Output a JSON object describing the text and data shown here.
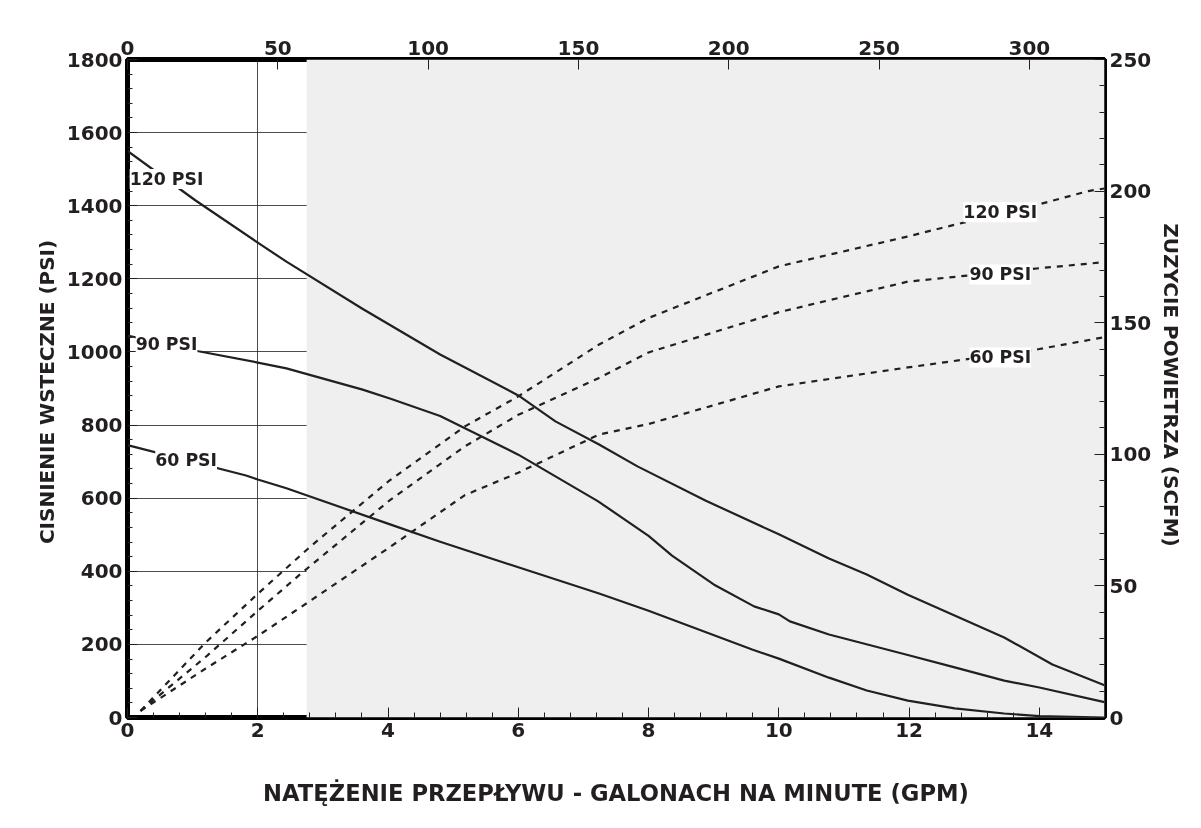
{
  "chart_data": {
    "type": "line",
    "xlabel": "NATĘŻENIE PRZEPŁYWU - GALONACH NA MINUTE (GPM)",
    "ylabel": "CISNIENIE WSTECZNE  (PSI)",
    "y2label": "ZUZYCIE POWIETRZA  (SCFM)",
    "xlim": [
      0,
      15
    ],
    "xticks": [
      0,
      2,
      4,
      6,
      8,
      10,
      12,
      14
    ],
    "ylim": [
      0,
      1800
    ],
    "yticks": [
      0,
      200,
      400,
      600,
      800,
      1000,
      1200,
      1400,
      1600,
      1800
    ],
    "y2lim": [
      0,
      250
    ],
    "y2ticks": [
      0,
      50,
      100,
      150,
      200,
      250
    ],
    "x2lim": [
      0,
      325
    ],
    "x2ticks": [
      0,
      50,
      100,
      150,
      200,
      250,
      300
    ],
    "grid": true,
    "bands": [
      {
        "axis": "x",
        "from": 2.75,
        "to": 15,
        "color": "#efefef"
      }
    ],
    "series": [
      {
        "color": "#231f20",
        "line_style": "solid",
        "axis": "y",
        "x": [
          0,
          1.04,
          2.0,
          2.44,
          3.6,
          4.8,
          6.0,
          6.57,
          7.24,
          7.83,
          8.88,
          10.0,
          10.77,
          11.35,
          11.98,
          13.46,
          14.2,
          15
        ],
        "values": [
          1550,
          1415,
          1299,
          1247,
          1119,
          993,
          881,
          810,
          747,
          687,
          593,
          501,
          435,
          391,
          336,
          219,
          145,
          88
        ]
      },
      {
        "color": "#231f20",
        "line_style": "solid",
        "axis": "y",
        "x": [
          0,
          1.09,
          2.0,
          2.44,
          3.61,
          4.04,
          4.8,
          6.0,
          7.22,
          8.0,
          8.36,
          9.0,
          9.62,
          10.0,
          10.17,
          10.77,
          11.98,
          12.7,
          13.46,
          14.0,
          15
        ],
        "values": [
          1045,
          1002,
          971,
          955,
          897,
          872,
          825,
          719,
          592,
          497,
          443,
          364,
          304,
          282,
          263,
          227,
          171,
          137,
          101,
          82,
          42
        ]
      },
      {
        "color": "#231f20",
        "line_style": "solid",
        "axis": "y",
        "x": [
          0,
          1.82,
          2.0,
          2.44,
          4.02,
          4.8,
          6.0,
          7.24,
          8.0,
          9.59,
          10.0,
          10.77,
          11.35,
          11.98,
          12.7,
          13.46,
          14.0,
          15
        ],
        "values": [
          745,
          662,
          651,
          627,
          529,
          481,
          411,
          339,
          292,
          186,
          161,
          109,
          74,
          46,
          25,
          11,
          4,
          0
        ]
      },
      {
        "color": "#231f20",
        "line_style": "dashed",
        "axis": "y2",
        "x": [
          0.2,
          1.2,
          2.0,
          2.81,
          4.02,
          5.18,
          6.0,
          7.24,
          8.0,
          10.0,
          11.97,
          12.5,
          14.0,
          14.75,
          15
        ],
        "values": [
          2.5,
          28.5,
          47,
          65,
          90,
          110.6,
          122,
          141.7,
          151.8,
          171.4,
          182.7,
          186,
          195,
          200,
          201
        ]
      },
      {
        "color": "#231f20",
        "line_style": "dashed",
        "axis": "y2",
        "x": [
          0.2,
          1.2,
          2.0,
          2.65,
          4.02,
          5.18,
          6.0,
          7.24,
          8.0,
          10.0,
          11.98,
          14.0,
          15
        ],
        "values": [
          2.5,
          23,
          40.5,
          54.4,
          82.4,
          103,
          115,
          129,
          138.7,
          154,
          165.6,
          170.7,
          173
        ]
      },
      {
        "color": "#231f20",
        "line_style": "dashed",
        "axis": "y2",
        "x": [
          0.2,
          1.2,
          2.0,
          2.81,
          4.02,
          5.18,
          6.0,
          7.24,
          8.0,
          10.0,
          11.98,
          14.0,
          15
        ],
        "values": [
          2.5,
          18.6,
          31,
          44.4,
          64.6,
          84.5,
          93,
          107.5,
          111.5,
          125.8,
          133,
          140,
          144.5
        ]
      }
    ],
    "annotations": [
      {
        "text": "120 PSI",
        "x": 0.6,
        "y": 1473
      },
      {
        "text": "90 PSI",
        "x": 0.6,
        "y": 1021
      },
      {
        "text": "60 PSI",
        "x": 0.9,
        "y": 704
      },
      {
        "text": "120 PSI",
        "x": 13.4,
        "y": 1382
      },
      {
        "text": "90 PSI",
        "x": 13.4,
        "y": 1212
      },
      {
        "text": "60 PSI",
        "x": 13.4,
        "y": 985
      }
    ]
  }
}
